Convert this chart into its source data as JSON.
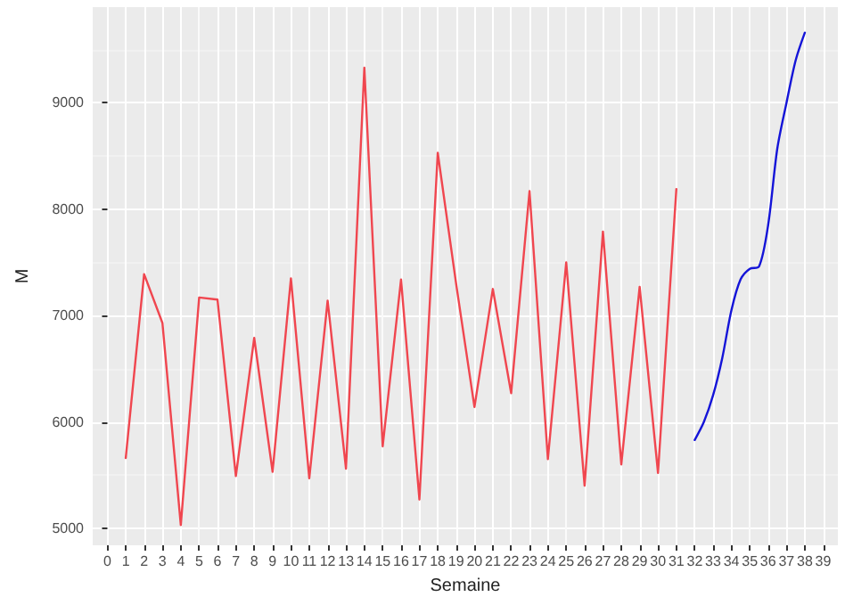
{
  "chart_data": {
    "type": "line",
    "xlabel": "Semaine",
    "ylabel": "M",
    "grid": true,
    "marker": "none",
    "line_style": "solid",
    "xlim": [
      -0.8,
      39.8
    ],
    "ylim": [
      4840,
      9900
    ],
    "xticks": [
      0,
      1,
      2,
      3,
      4,
      5,
      6,
      7,
      8,
      9,
      10,
      11,
      12,
      13,
      14,
      15,
      16,
      17,
      18,
      19,
      20,
      21,
      22,
      23,
      24,
      25,
      26,
      27,
      28,
      29,
      30,
      31,
      32,
      33,
      34,
      35,
      36,
      37,
      38,
      39
    ],
    "yticks": [
      5000,
      6000,
      7000,
      8000,
      9000
    ],
    "series": [
      {
        "color": "#f0464f",
        "x": [
          1,
          2,
          3,
          4,
          5,
          6,
          7,
          8,
          9,
          10,
          11,
          12,
          13,
          14,
          15,
          16,
          17,
          18,
          19,
          20,
          21,
          22,
          23,
          24,
          25,
          26,
          27,
          28,
          29,
          30,
          31
        ],
        "values": [
          5660,
          7390,
          6930,
          5030,
          7170,
          7150,
          5490,
          6790,
          5530,
          7350,
          5470,
          7140,
          5560,
          9330,
          5770,
          7340,
          5270,
          8530,
          7300,
          6140,
          7250,
          6270,
          8170,
          5650,
          7500,
          5400,
          7790,
          5600,
          7270,
          5520,
          8190
        ]
      },
      {
        "color": "#1414d8",
        "x": [
          32,
          32.5,
          33,
          33.5,
          34,
          34.5,
          35,
          35.5,
          36,
          36.5,
          37,
          37.5,
          38
        ],
        "values": [
          5830,
          6000,
          6250,
          6600,
          7050,
          7340,
          7440,
          7460,
          7850,
          8570,
          9000,
          9400,
          9660
        ]
      }
    ]
  }
}
